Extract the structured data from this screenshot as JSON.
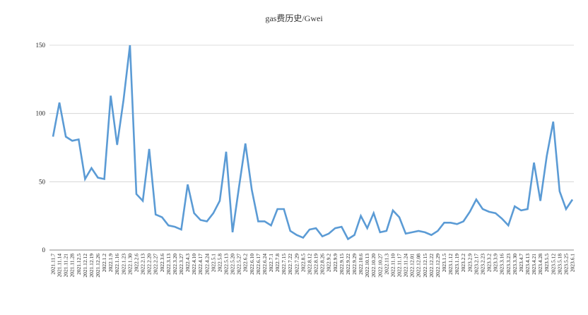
{
  "chart_data": {
    "type": "line",
    "title": "gas费历史/Gwei",
    "xlabel": "",
    "ylabel": "",
    "ylim": [
      0,
      150
    ],
    "yticks": [
      0,
      50,
      100,
      150
    ],
    "grid": true,
    "legend": "none",
    "colors": {
      "line": "#5b9bd5",
      "grid": "#d0d0d0",
      "axis": "#888888"
    },
    "x": [
      "2021.11.7",
      "2021.11.14",
      "2021.11.21",
      "2021.11.28",
      "2021.12.5",
      "2021.12.12",
      "2021.12.19",
      "2021.12.26",
      "2022.1.2",
      "2022.1.9",
      "2022.1.16",
      "2022.1.23",
      "2022.1.30",
      "2022.2.6",
      "2022.2.13",
      "2022.2.20",
      "2022.2.27",
      "2022.3.6",
      "2022.3.13",
      "2022.3.20",
      "2022.3.27",
      "2022.4.3",
      "2022.4.10",
      "2022.4.17",
      "2022.4.24",
      "2022.5.1",
      "2022.5.8",
      "2022.5.13",
      "2022.5.20",
      "2022.5.27",
      "2022.6.2",
      "2022.6.10",
      "2022.6.17",
      "2022.6.24",
      "2022.7.1",
      "2022.7.8",
      "2022.7.15",
      "2022.7.22",
      "2022.7.29",
      "2022.8.5",
      "2022.8.12",
      "2022.8.19",
      "2022.8.26",
      "2022.9.2",
      "2022.9.9",
      "2022.9.15",
      "2022.9.22",
      "2022.9.29",
      "2022.10.6",
      "2022.10.13",
      "2022.10.20",
      "2022.10.27",
      "2022.11.3",
      "2022.11.10",
      "2022.11.17",
      "2022.11.24",
      "2022.12.01",
      "2022.12.08",
      "2022.12.15",
      "2022.12.22",
      "2022.12.29",
      "2023.1.5",
      "2023.1.12",
      "2023.1.19",
      "2023.2.2",
      "2023.2.9",
      "2023.2.17",
      "2023.2.23",
      "2023.3.2",
      "2023.3.9",
      "2023.3.16",
      "2023.3.23",
      "2023.3.30",
      "2023.4.7",
      "2023.4.13",
      "2023.4.21",
      "2023.4.28",
      "2023.5.5",
      "2023.5.12",
      "2023.5.18",
      "2023.5.25",
      "2023.6.1"
    ],
    "series": [
      {
        "values": [
          83,
          108,
          83,
          80,
          81,
          52,
          60,
          53,
          52,
          113,
          77,
          110,
          150,
          41,
          36,
          74,
          26,
          24,
          18,
          17,
          15,
          48,
          27,
          22,
          21,
          27,
          36,
          72,
          13,
          46,
          78,
          44,
          21,
          21,
          18,
          30,
          30,
          14,
          11,
          9,
          15,
          16,
          10,
          12,
          16,
          17,
          8,
          11,
          25,
          16,
          27,
          13,
          14,
          29,
          24,
          12,
          13,
          14,
          13,
          11,
          14,
          20,
          20,
          19,
          21,
          28,
          37,
          30,
          28,
          27,
          23,
          18,
          32,
          29,
          30,
          64,
          36,
          69,
          94,
          43,
          30,
          37
        ]
      }
    ]
  }
}
